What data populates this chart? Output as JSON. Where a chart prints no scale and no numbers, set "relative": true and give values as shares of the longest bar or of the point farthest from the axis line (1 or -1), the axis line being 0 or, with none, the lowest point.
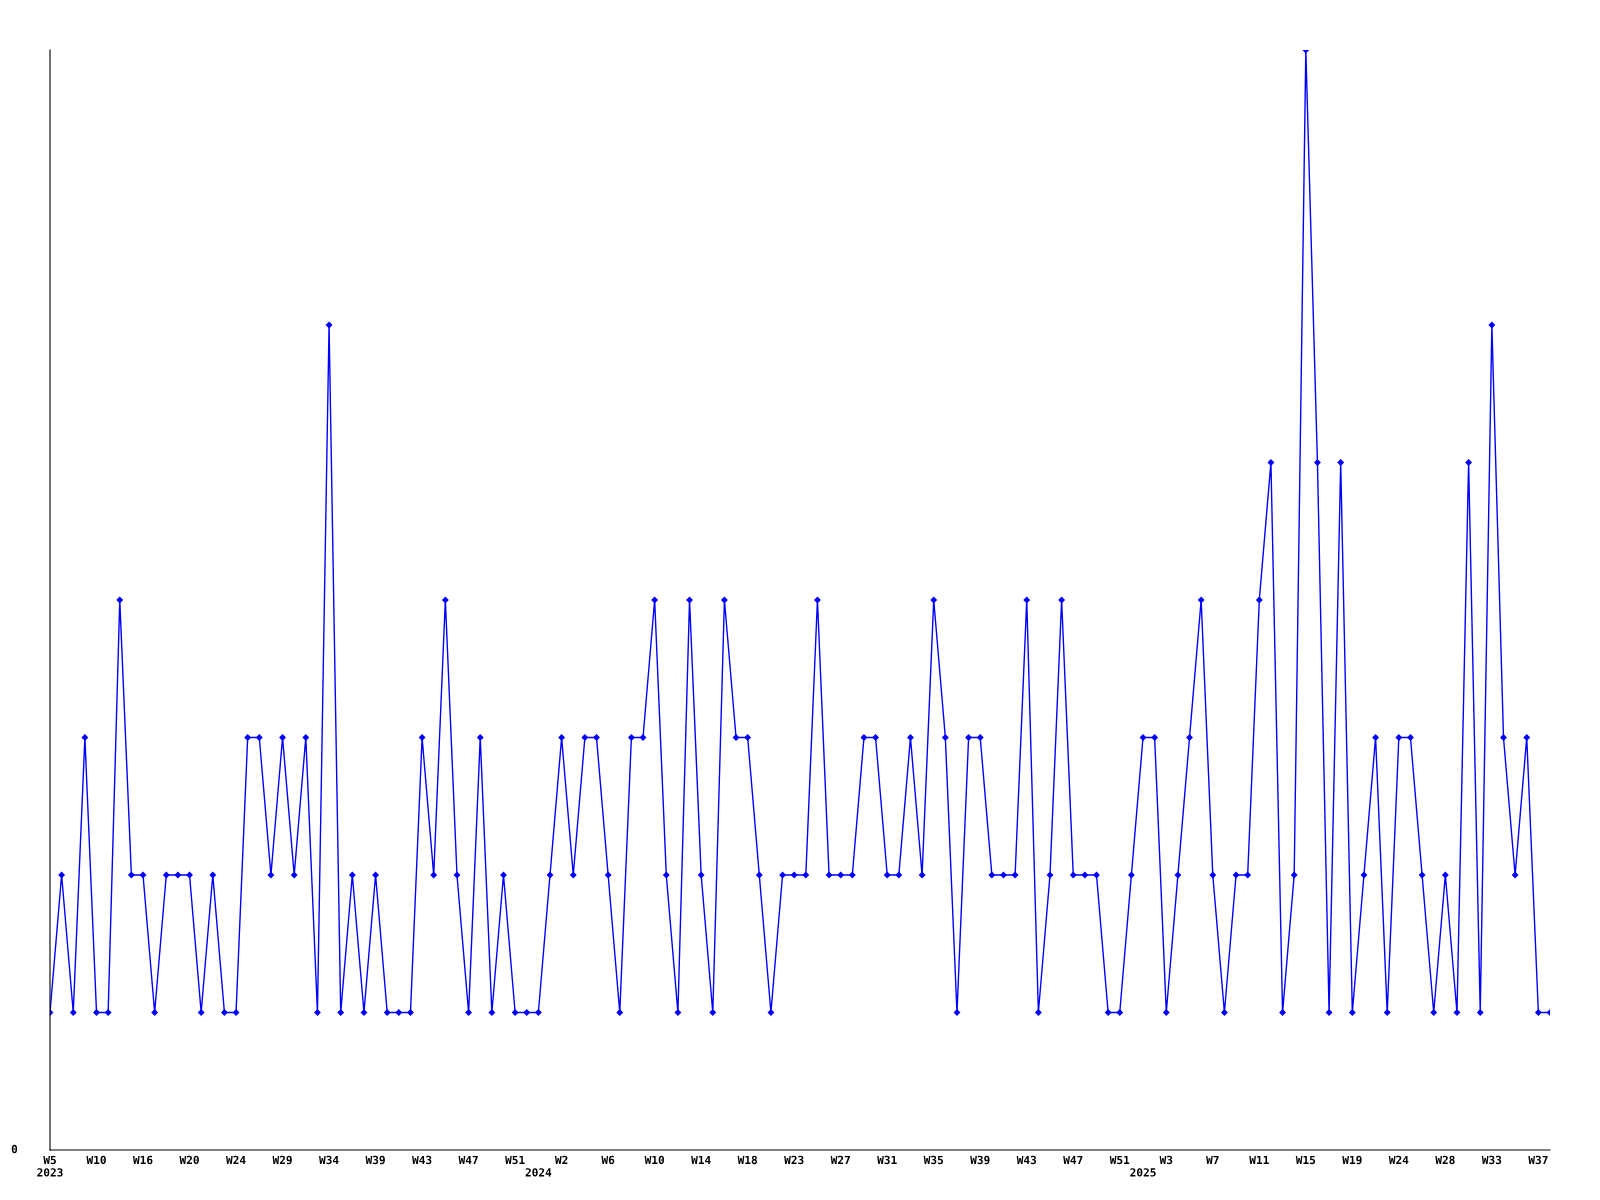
{
  "chart_data": {
    "type": "line",
    "relative": true,
    "marker": "diamond",
    "line_style": "solid",
    "grid": false,
    "annotations": [
      "0"
    ],
    "categories": [
      "W5\n2023",
      null,
      null,
      null,
      "W10",
      null,
      null,
      null,
      "W16",
      null,
      null,
      null,
      "W20",
      null,
      null,
      null,
      "W24",
      null,
      null,
      null,
      "W29",
      null,
      null,
      null,
      "W34",
      null,
      null,
      null,
      "W39",
      null,
      null,
      null,
      "W43",
      null,
      null,
      null,
      "W47",
      null,
      null,
      null,
      "W51",
      null,
      "\n2024",
      null,
      "W2",
      null,
      null,
      null,
      "W6",
      null,
      null,
      null,
      "W10",
      null,
      null,
      null,
      "W14",
      null,
      null,
      null,
      "W18",
      null,
      null,
      null,
      "W23",
      null,
      null,
      null,
      "W27",
      null,
      null,
      null,
      "W31",
      null,
      null,
      null,
      "W35",
      null,
      null,
      null,
      "W39",
      null,
      null,
      null,
      "W43",
      null,
      null,
      null,
      "W47",
      null,
      null,
      null,
      "W51",
      null,
      "\n2025",
      null,
      "W3",
      null,
      null,
      null,
      "W7",
      null,
      null,
      null,
      "W11",
      null,
      null,
      null,
      "W15",
      null,
      null,
      null,
      "W19",
      null,
      null,
      null,
      "W24",
      null,
      null,
      null,
      "W28",
      null,
      null,
      null,
      "W33",
      null,
      null,
      null,
      "W37",
      null
    ],
    "series": [
      {
        "color": "#0000ff",
        "values": [
          0.125,
          0.25,
          0.125,
          0.375,
          0.125,
          0.125,
          0.5,
          0.25,
          0.25,
          0.125,
          0.25,
          0.25,
          0.25,
          0.125,
          0.25,
          0.125,
          0.125,
          0.375,
          0.375,
          0.25,
          0.375,
          0.25,
          0.375,
          0.125,
          0.75,
          0.125,
          0.25,
          0.125,
          0.25,
          0.125,
          0.125,
          0.125,
          0.375,
          0.25,
          0.5,
          0.25,
          0.125,
          0.375,
          0.125,
          0.25,
          0.125,
          0.125,
          0.125,
          0.25,
          0.375,
          0.25,
          0.375,
          0.375,
          0.25,
          0.125,
          0.375,
          0.375,
          0.5,
          0.25,
          0.125,
          0.5,
          0.25,
          0.125,
          0.5,
          0.375,
          0.375,
          0.25,
          0.125,
          0.25,
          0.25,
          0.25,
          0.5,
          0.25,
          0.25,
          0.25,
          0.375,
          0.375,
          0.25,
          0.25,
          0.375,
          0.25,
          0.5,
          0.375,
          0.125,
          0.375,
          0.375,
          0.25,
          0.25,
          0.25,
          0.5,
          0.125,
          0.25,
          0.5,
          0.25,
          0.25,
          0.25,
          0.125,
          0.125,
          0.25,
          0.375,
          0.375,
          0.125,
          0.25,
          0.375,
          0.5,
          0.25,
          0.125,
          0.25,
          0.25,
          0.5,
          0.625,
          0.125,
          0.25,
          1,
          0.625,
          0.125,
          0.625,
          0.125,
          0.25,
          0.375,
          0.125,
          0.375,
          0.375,
          0.25,
          0.125,
          0.25,
          0.125,
          0.625,
          0.125,
          0.75,
          0.375,
          0.25,
          0.375,
          0.125,
          0.125
        ]
      }
    ]
  }
}
